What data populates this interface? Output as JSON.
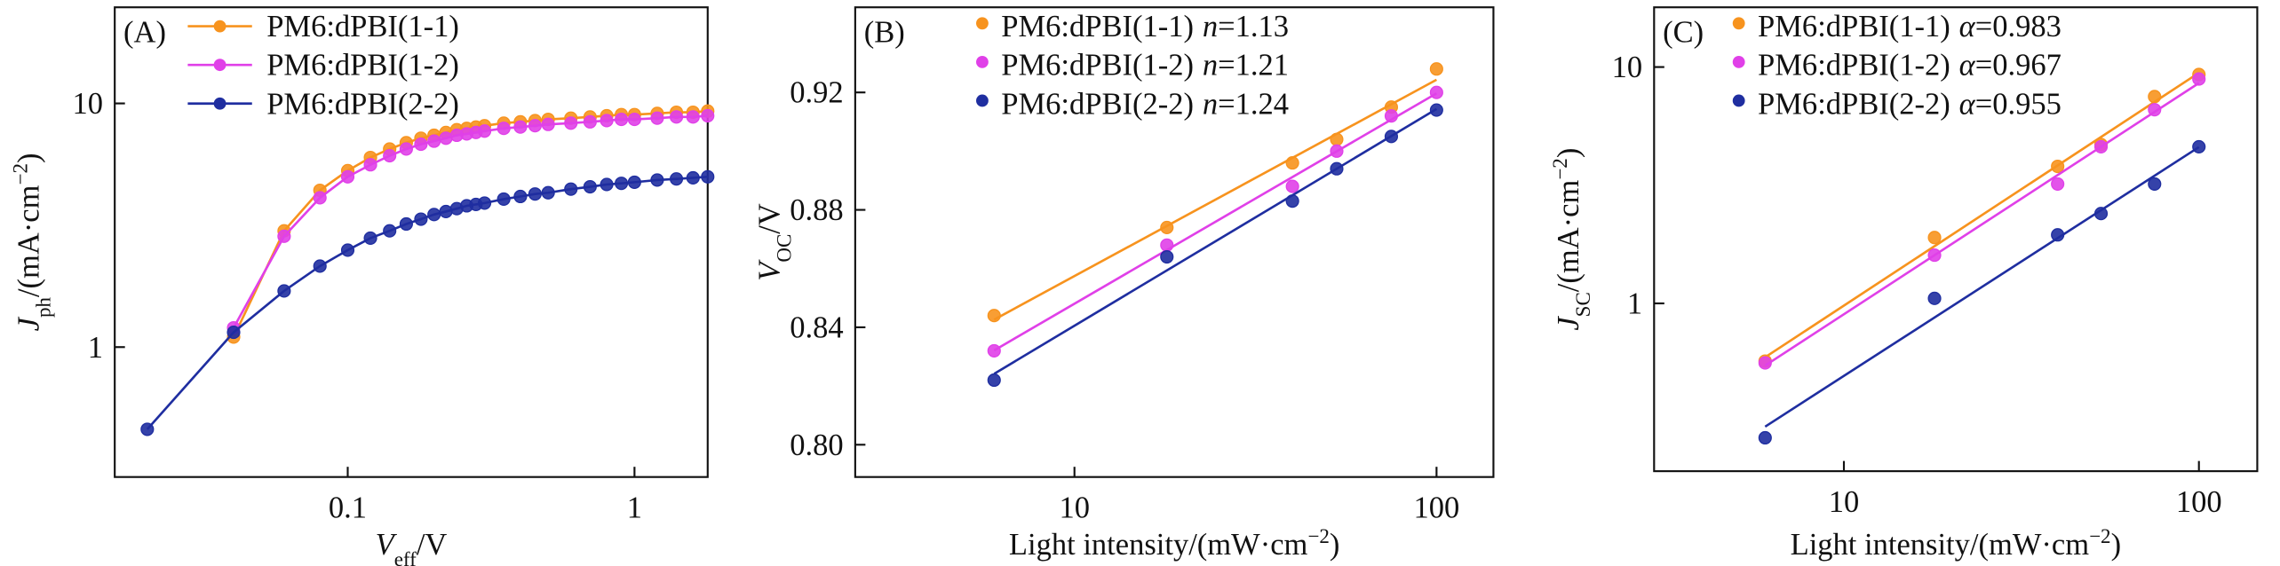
{
  "chart_data": [
    {
      "type": "line",
      "panel_label": "(A)",
      "xscale": "log",
      "yscale": "log",
      "xlabel": [
        {
          "text": "V",
          "style": "italic"
        },
        {
          "text": "eff",
          "style": "sub"
        },
        {
          "text": "/V"
        }
      ],
      "ylabel": [
        {
          "text": "J",
          "style": "italic"
        },
        {
          "text": "ph",
          "style": "sub"
        },
        {
          "text": "/(mA·cm"
        },
        {
          "text": "−2",
          "style": "sup"
        },
        {
          "text": ")"
        }
      ],
      "xlim": [
        0.0154,
        1.8
      ],
      "ylim": [
        0.293,
        24.8
      ],
      "xticks": [
        0.1,
        1
      ],
      "yticks": [
        1,
        10
      ],
      "x": [
        0.02,
        0.04,
        0.06,
        0.08,
        0.1,
        0.12,
        0.14,
        0.16,
        0.18,
        0.2,
        0.22,
        0.24,
        0.26,
        0.28,
        0.3,
        0.35,
        0.4,
        0.45,
        0.5,
        0.6,
        0.7,
        0.8,
        0.9,
        1.0,
        1.2,
        1.4,
        1.6,
        1.8
      ],
      "series": [
        {
          "name": "PM6:dPBI(1-1)",
          "color": "#f7931e",
          "values": [
            null,
            1.1,
            3.0,
            4.4,
            5.3,
            6.0,
            6.5,
            6.9,
            7.2,
            7.4,
            7.6,
            7.8,
            7.9,
            8.0,
            8.1,
            8.3,
            8.4,
            8.5,
            8.6,
            8.7,
            8.8,
            8.9,
            9.0,
            9.0,
            9.1,
            9.2,
            9.2,
            9.3
          ]
        },
        {
          "name": "PM6:dPBI(1-2)",
          "color": "#e040e8",
          "values": [
            null,
            1.2,
            2.85,
            4.1,
            5.0,
            5.6,
            6.1,
            6.5,
            6.8,
            7.0,
            7.2,
            7.4,
            7.5,
            7.6,
            7.7,
            7.9,
            8.0,
            8.1,
            8.2,
            8.3,
            8.4,
            8.5,
            8.6,
            8.6,
            8.7,
            8.8,
            8.8,
            8.9
          ]
        },
        {
          "name": "PM6:dPBI(2-2)",
          "color": "#1f2ea0",
          "values": [
            0.46,
            1.15,
            1.7,
            2.15,
            2.5,
            2.8,
            3.0,
            3.2,
            3.35,
            3.5,
            3.6,
            3.7,
            3.8,
            3.85,
            3.9,
            4.05,
            4.15,
            4.25,
            4.3,
            4.45,
            4.55,
            4.65,
            4.7,
            4.75,
            4.85,
            4.9,
            4.95,
            5.0
          ]
        }
      ]
    },
    {
      "type": "scatter",
      "panel_label": "(B)",
      "xscale": "log",
      "yscale": "linear",
      "fit": "semilog",
      "xlabel": [
        {
          "text": "Light intensity/(mW·cm"
        },
        {
          "text": "−2",
          "style": "sup"
        },
        {
          "text": ")"
        }
      ],
      "ylabel": [
        {
          "text": "V",
          "style": "italic"
        },
        {
          "text": "OC",
          "style": "sub"
        },
        {
          "text": "/V"
        }
      ],
      "xlim": [
        2.48,
        143.6
      ],
      "ylim": [
        0.789,
        0.949
      ],
      "xticks": [
        10,
        100
      ],
      "yticks": [
        {
          "value": 0.8,
          "label": "0.80"
        },
        {
          "value": 0.84,
          "label": "0.84"
        },
        {
          "value": 0.88,
          "label": "0.88"
        },
        {
          "value": 0.92,
          "label": "0.92"
        }
      ],
      "x": [
        6,
        18,
        40,
        53,
        75,
        100
      ],
      "series": [
        {
          "name": "PM6:dPBI(1-1)",
          "color": "#f7931e",
          "fit_label": [
            {
              "text": "n",
              "style": "italic"
            },
            {
              "text": "=1.13"
            }
          ],
          "values": [
            0.844,
            0.874,
            0.896,
            0.904,
            0.915,
            0.928
          ]
        },
        {
          "name": "PM6:dPBI(1-2)",
          "color": "#e040e8",
          "fit_label": [
            {
              "text": "n",
              "style": "italic"
            },
            {
              "text": "=1.21"
            }
          ],
          "values": [
            0.832,
            0.868,
            0.888,
            0.9,
            0.912,
            0.92
          ]
        },
        {
          "name": "PM6:dPBI(2-2)",
          "color": "#1f2ea0",
          "fit_label": [
            {
              "text": "n",
              "style": "italic"
            },
            {
              "text": "=1.24"
            }
          ],
          "values": [
            0.822,
            0.864,
            0.883,
            0.894,
            0.905,
            0.914
          ]
        }
      ]
    },
    {
      "type": "scatter",
      "panel_label": "(C)",
      "xscale": "log",
      "yscale": "log",
      "fit": "loglog",
      "xlabel": [
        {
          "text": "Light intensity/(mW·cm"
        },
        {
          "text": "−2",
          "style": "sup"
        },
        {
          "text": ")"
        }
      ],
      "ylabel": [
        {
          "text": "J",
          "style": "italic"
        },
        {
          "text": "SC",
          "style": "sub"
        },
        {
          "text": "/(mA·cm"
        },
        {
          "text": "−2",
          "style": "sup"
        },
        {
          "text": ")"
        }
      ],
      "xlim": [
        2.92,
        146
      ],
      "ylim": [
        0.195,
        17.9
      ],
      "xticks": [
        10,
        100
      ],
      "yticks": [
        1,
        10
      ],
      "x": [
        6,
        18,
        40,
        53,
        75,
        100
      ],
      "series": [
        {
          "name": "PM6:dPBI(1-1)",
          "color": "#f7931e",
          "fit_label": [
            {
              "text": "α",
              "style": "italic"
            },
            {
              "text": "=0.983"
            }
          ],
          "values": [
            0.57,
            1.9,
            3.8,
            4.7,
            7.5,
            9.3
          ]
        },
        {
          "name": "PM6:dPBI(1-2)",
          "color": "#e040e8",
          "fit_label": [
            {
              "text": "α",
              "style": "italic"
            },
            {
              "text": "=0.967"
            }
          ],
          "values": [
            0.56,
            1.6,
            3.2,
            4.6,
            6.6,
            8.9
          ]
        },
        {
          "name": "PM6:dPBI(2-2)",
          "color": "#1f2ea0",
          "fit_label": [
            {
              "text": "α",
              "style": "italic"
            },
            {
              "text": "=0.955"
            }
          ],
          "values": [
            0.27,
            1.05,
            1.95,
            2.4,
            3.2,
            4.6
          ]
        }
      ]
    }
  ]
}
